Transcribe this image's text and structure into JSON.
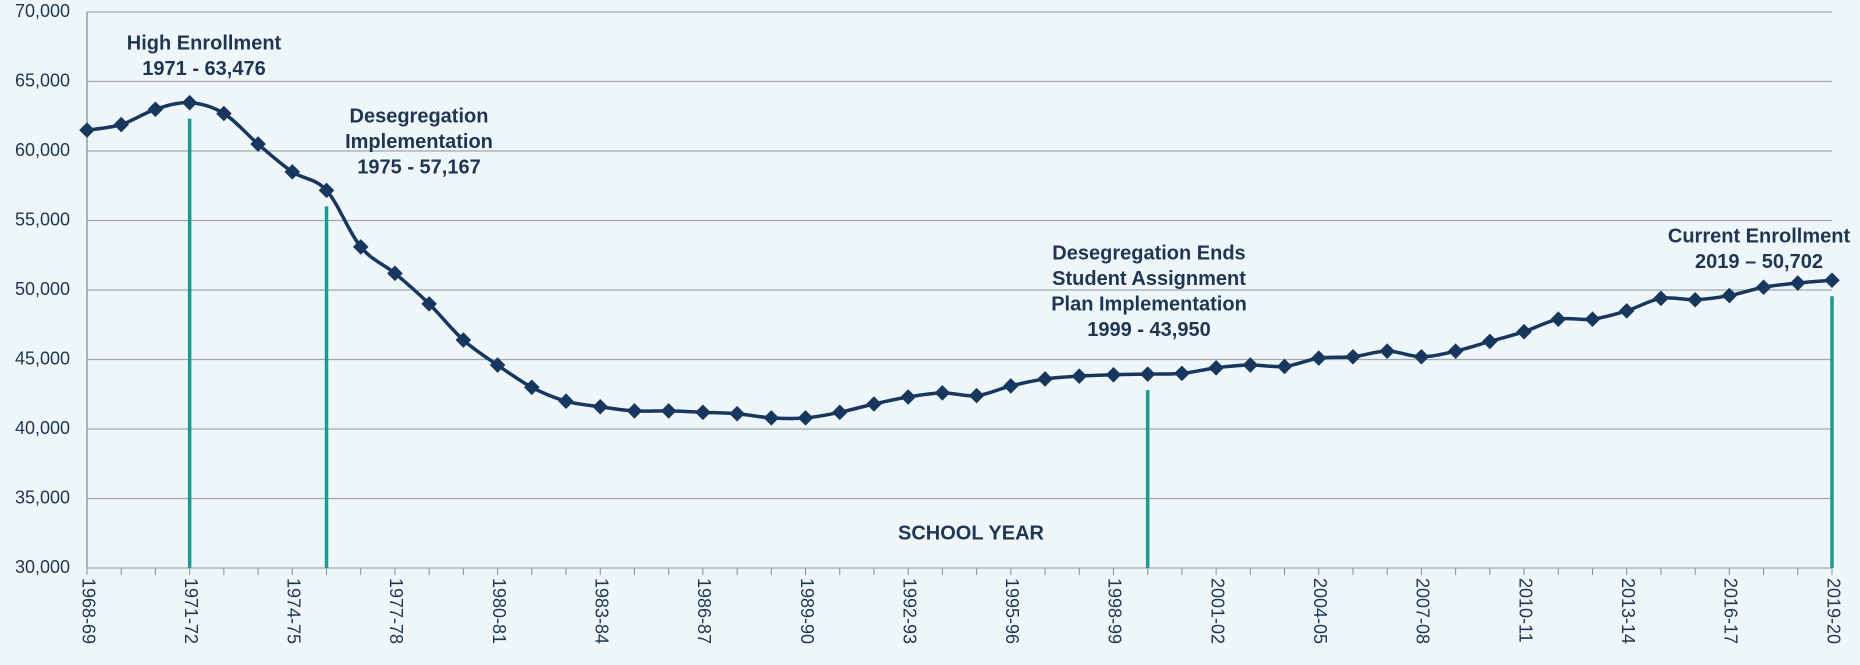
{
  "chart_data": {
    "type": "line",
    "x_label": "SCHOOL YEAR",
    "categories": [
      "1968-69",
      null,
      null,
      "1971-72",
      null,
      null,
      "1974-75",
      null,
      null,
      "1977-78",
      null,
      null,
      "1980-81",
      null,
      null,
      "1983-84",
      null,
      null,
      "1986-87",
      null,
      null,
      "1989-90",
      null,
      null,
      "1992-93",
      null,
      null,
      "1995-96",
      null,
      null,
      "1998-99",
      null,
      null,
      "2001-02",
      null,
      null,
      "2004-05",
      null,
      null,
      "2007-08",
      null,
      null,
      "2010-11",
      null,
      null,
      "2013-14",
      null,
      null,
      "2016-17",
      null,
      null,
      "2019-20"
    ],
    "values": [
      61500,
      61900,
      63000,
      63476,
      62700,
      60500,
      58500,
      57167,
      53100,
      51200,
      49000,
      46400,
      44600,
      43000,
      42000,
      41600,
      41300,
      41300,
      41200,
      41100,
      40800,
      40800,
      41200,
      41800,
      42300,
      42600,
      42400,
      43100,
      43600,
      43800,
      43900,
      43950,
      44000,
      44400,
      44600,
      44500,
      45100,
      45200,
      45600,
      45200,
      45600,
      46300,
      47000,
      47900,
      47900,
      48500,
      49400,
      49300,
      49600,
      50200,
      50500,
      50702
    ],
    "color": "#17375e",
    "ylim": [
      30000,
      70000
    ],
    "yticks": [
      {
        "value": 30000,
        "label": "30,000"
      },
      {
        "value": 35000,
        "label": "35,000"
      },
      {
        "value": 40000,
        "label": "40,000"
      },
      {
        "value": 45000,
        "label": "45,000"
      },
      {
        "value": 50000,
        "label": "50,000"
      },
      {
        "value": 55000,
        "label": "55,000"
      },
      {
        "value": 60000,
        "label": "60,000"
      },
      {
        "value": 65000,
        "label": "65,000"
      },
      {
        "value": 70000,
        "label": "70,000"
      }
    ],
    "grid": true,
    "annotations": [
      [
        "High Enrollment",
        "1971 - 63,476"
      ],
      [
        "Desegregation",
        "Implementation",
        "1975 - 57,167"
      ],
      [
        "Desegregation Ends",
        "Student Assignment",
        "Plan Implementation",
        "1999 - 43,950"
      ],
      [
        "Current Enrollment",
        "2019 – 50,702"
      ]
    ]
  }
}
